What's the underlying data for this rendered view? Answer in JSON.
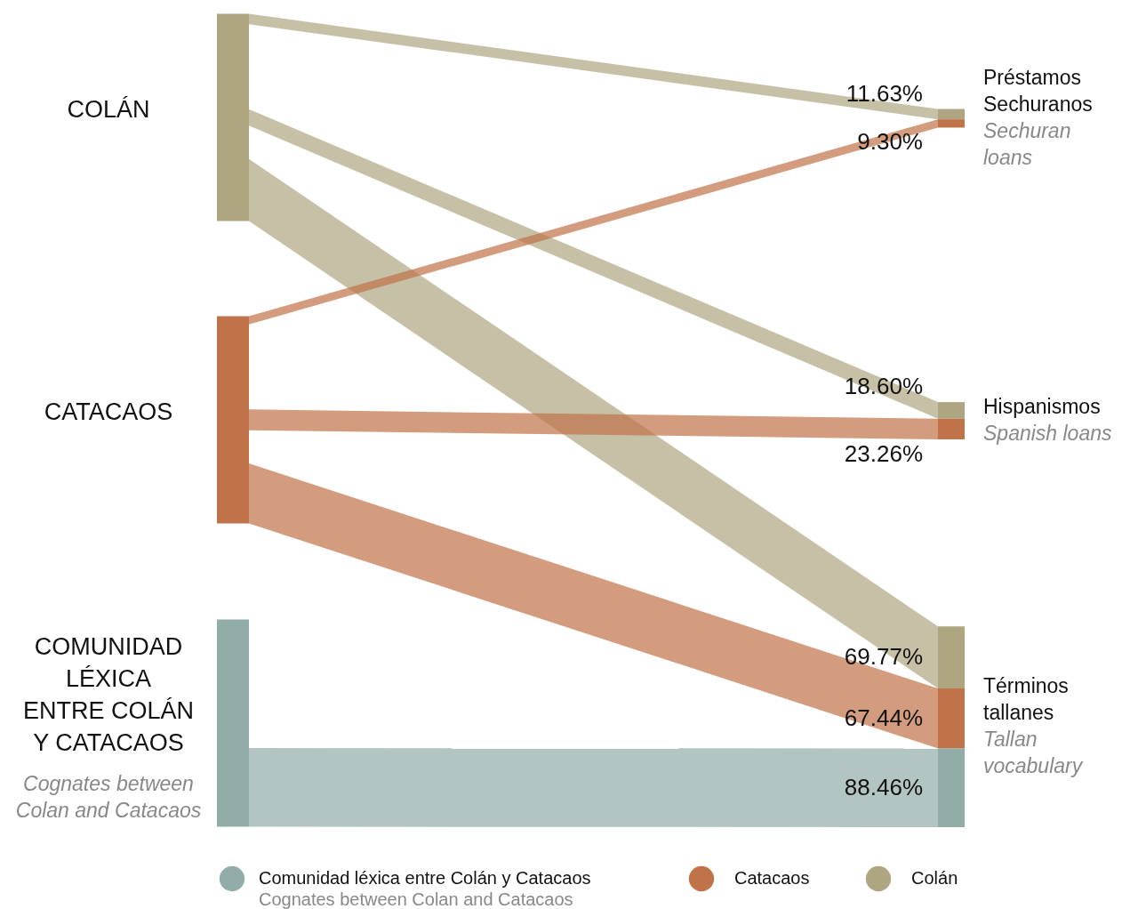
{
  "chart_data": {
    "type": "other",
    "categories": [
      "Préstamos Sechuranos",
      "Hispanismos",
      "Términos tallanes"
    ],
    "series": [
      {
        "name": "Colán",
        "color": "#aea680",
        "values": [
          11.63,
          18.6,
          69.77
        ],
        "value_labels": [
          "11.63%",
          "18.60%",
          "69.77%"
        ]
      },
      {
        "name": "Catacaos",
        "color": "#c07248",
        "values": [
          9.3,
          23.26,
          67.44
        ],
        "value_labels": [
          "9.30%",
          "23.26%",
          "67.44%"
        ]
      },
      {
        "name": "Comunidad léxica entre Colán y Catacaos",
        "color": "#92ada8",
        "values": [
          null,
          null,
          88.46
        ],
        "value_labels": [
          null,
          null,
          "88.46%"
        ]
      }
    ],
    "annotations": [
      "COLÁN",
      "CATACAOS",
      "COMUNIDAD LÉXICA ENTRE COLÁN Y CATACAOS",
      "Cognates between Colan and Catacaos",
      "Sechuran loans",
      "Spanish loans",
      "Tallan vocabulary",
      "Cognates between Colan and Catacaos"
    ],
    "legend": "bottom"
  }
}
